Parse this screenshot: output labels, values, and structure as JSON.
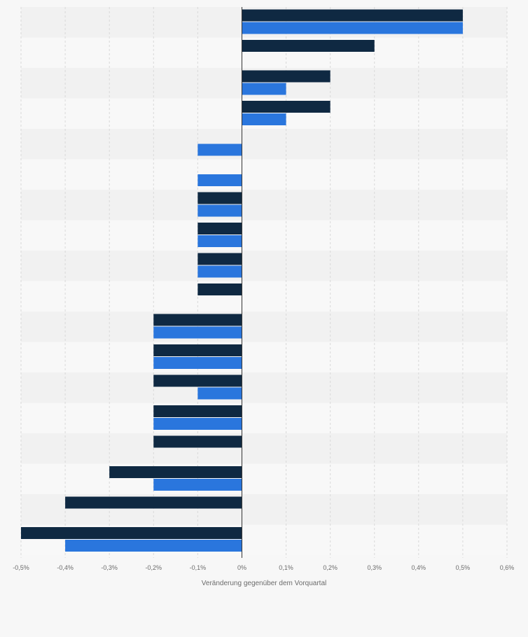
{
  "chart_data": {
    "type": "bar",
    "orientation": "horizontal",
    "grid": true,
    "legend": "none",
    "xlabel": "Veränderung gegenüber dem Vorquartal",
    "ylabel": "",
    "xlim": [
      -0.5,
      0.6
    ],
    "x_ticks": [
      -0.5,
      -0.4,
      -0.3,
      -0.2,
      -0.1,
      0,
      0.1,
      0.2,
      0.3,
      0.4,
      0.5,
      0.6
    ],
    "x_tick_labels": [
      "-0,5%",
      "-0,4%",
      "-0,3%",
      "-0,2%",
      "-0,1%",
      "0%",
      "0,1%",
      "0,2%",
      "0,3%",
      "0,4%",
      "0,5%",
      "0,6%"
    ],
    "categories": [
      "",
      "",
      "",
      "",
      "",
      "",
      "",
      "",
      "",
      "",
      "",
      "",
      "",
      "",
      "",
      "",
      "",
      ""
    ],
    "series": [
      {
        "color": "#0f2942",
        "values": [
          0.5,
          0.3,
          0.2,
          0.2,
          0,
          0,
          -0.1,
          -0.1,
          -0.1,
          -0.1,
          -0.2,
          -0.2,
          -0.2,
          -0.2,
          -0.2,
          -0.3,
          -0.4,
          -0.5
        ]
      },
      {
        "color": "#2a76dd",
        "values": [
          0.5,
          0,
          0.1,
          0.1,
          -0.1,
          -0.1,
          -0.1,
          -0.1,
          -0.1,
          0,
          -0.2,
          -0.2,
          -0.1,
          -0.2,
          0,
          -0.2,
          0,
          -0.4
        ]
      }
    ]
  }
}
